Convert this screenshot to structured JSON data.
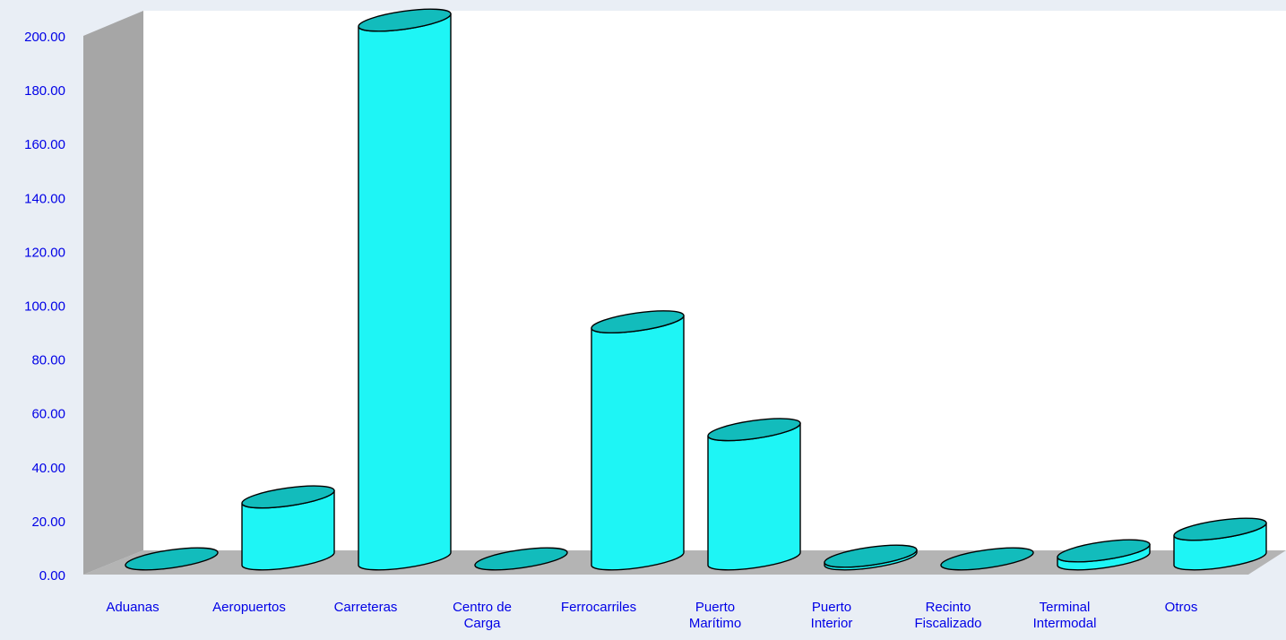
{
  "chart_data": {
    "type": "bar",
    "style": "3d-cylinder",
    "title": "",
    "xlabel": "",
    "ylabel": "",
    "categories": [
      [
        "Aduanas"
      ],
      [
        "Aeropuertos"
      ],
      [
        "Carreteras"
      ],
      [
        "Centro de",
        "Carga"
      ],
      [
        "Ferrocarriles"
      ],
      [
        "Puerto",
        "Marítimo"
      ],
      [
        "Puerto",
        "Interior"
      ],
      [
        "Recinto",
        "Fiscalizado"
      ],
      [
        "Terminal",
        "Intermodal"
      ],
      [
        "Otros"
      ]
    ],
    "values": [
      0,
      23,
      200,
      0,
      88,
      48,
      1,
      0,
      3,
      11
    ],
    "ylim": [
      0,
      200
    ],
    "yticks": [
      "0.00",
      "20.00",
      "40.00",
      "60.00",
      "80.00",
      "100.00",
      "120.00",
      "140.00",
      "160.00",
      "180.00",
      "200.00"
    ],
    "grid": false,
    "legend": "none",
    "colors": {
      "bar_body": "#1ef5f5",
      "bar_top": "#12bcbc",
      "bar_outline": "#000000",
      "back_wall": "#ffffff",
      "side_wall": "#a6a6a6",
      "floor": "#b4b4b4",
      "axis_text": "#0000e6",
      "background": "#e9eef5"
    }
  }
}
